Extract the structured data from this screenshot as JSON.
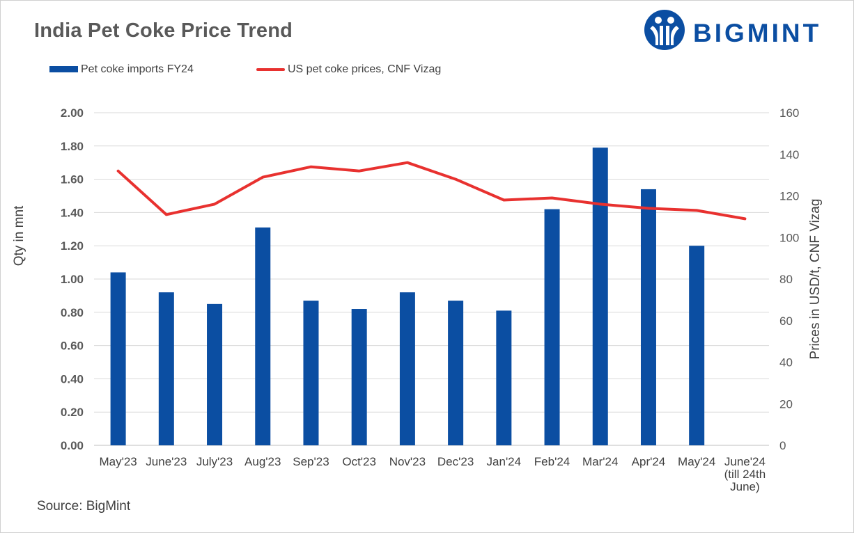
{
  "header": {
    "title": "India Pet Coke Price Trend",
    "logo_text": "BIGMINT"
  },
  "legend": {
    "bar_label": "Pet coke imports FY24",
    "line_label": "US pet coke prices, CNF Vizag"
  },
  "footer": {
    "source": "Source: BigMint"
  },
  "colors": {
    "bar": "#0b4ea2",
    "line": "#e8312f",
    "grid": "#d9d9d9",
    "text": "#404040"
  },
  "chart_data": {
    "type": "bar+line",
    "title": "India Pet Coke Price Trend",
    "categories": [
      "May'23",
      "June'23",
      "July'23",
      "Aug'23",
      "Sep'23",
      "Oct'23",
      "Nov'23",
      "Dec'23",
      "Jan'24",
      "Feb'24",
      "Mar'24",
      "Apr'24",
      "May'24",
      "June'24 (till 24th June)"
    ],
    "category_lines": [
      [
        "May'23"
      ],
      [
        "June'23"
      ],
      [
        "July'23"
      ],
      [
        "Aug'23"
      ],
      [
        "Sep'23"
      ],
      [
        "Oct'23"
      ],
      [
        "Nov'23"
      ],
      [
        "Dec'23"
      ],
      [
        "Jan'24"
      ],
      [
        "Feb'24"
      ],
      [
        "Mar'24"
      ],
      [
        "Apr'24"
      ],
      [
        "May'24"
      ],
      [
        "June'24",
        "(till 24th",
        "June)"
      ]
    ],
    "series": [
      {
        "name": "Pet coke imports FY24",
        "type": "bar",
        "axis": "left",
        "values": [
          1.04,
          0.92,
          0.85,
          1.31,
          0.87,
          0.82,
          0.92,
          0.87,
          0.81,
          1.42,
          1.79,
          1.54,
          1.2,
          null
        ]
      },
      {
        "name": "US pet coke prices, CNF Vizag",
        "type": "line",
        "axis": "right",
        "values": [
          132,
          111,
          116,
          129,
          134,
          132,
          136,
          128,
          118,
          119,
          116,
          114,
          113,
          109
        ]
      }
    ],
    "ylabel": "Qty in mnt",
    "y2label": "Prices in USD/t, CNF Vizag",
    "ylim": [
      0,
      2.0
    ],
    "y2lim": [
      0,
      160
    ],
    "yticks": [
      "0.00",
      "0.20",
      "0.40",
      "0.60",
      "0.80",
      "1.00",
      "1.20",
      "1.40",
      "1.60",
      "1.80",
      "2.00"
    ],
    "y2ticks": [
      "0",
      "20",
      "40",
      "60",
      "80",
      "100",
      "120",
      "140",
      "160"
    ],
    "grid": true,
    "legend_position": "top-left"
  }
}
